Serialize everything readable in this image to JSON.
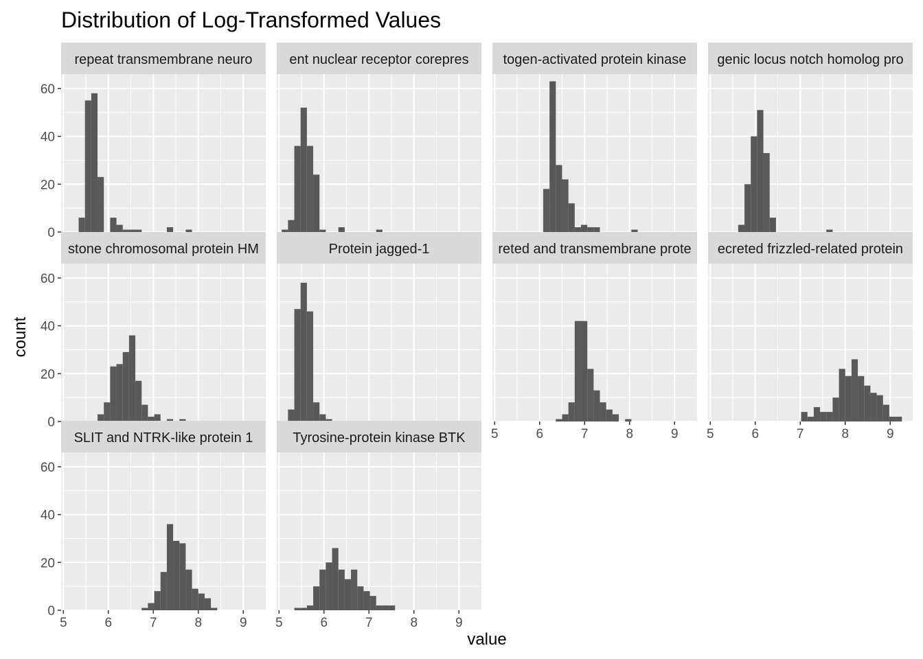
{
  "chart_data": {
    "type": "bar",
    "subtype": "faceted histogram",
    "title": "Distribution of Log-Transformed Values",
    "xlabel": "value",
    "ylabel": "count",
    "xlim": [
      4.95,
      9.5
    ],
    "ylim": [
      0,
      66
    ],
    "xticks": [
      5,
      6,
      7,
      8,
      9
    ],
    "yticks": [
      0,
      20,
      40,
      60
    ],
    "bin_width": 0.14,
    "grid": true,
    "colors": {
      "bar": "#595959",
      "panel": "#ebebeb",
      "strip": "#d9d9d9",
      "grid": "#ffffff"
    },
    "facets": [
      {
        "label": "repeat transmembrane neuro",
        "bins": [
          [
            5.41,
            6
          ],
          [
            5.55,
            55
          ],
          [
            5.69,
            58
          ],
          [
            5.83,
            23
          ],
          [
            6.11,
            6
          ],
          [
            6.25,
            3
          ],
          [
            6.39,
            1
          ],
          [
            6.53,
            1
          ],
          [
            6.67,
            1
          ],
          [
            7.37,
            2
          ],
          [
            7.79,
            1
          ]
        ]
      },
      {
        "label": "ent nuclear receptor corepres",
        "bins": [
          [
            5.13,
            1
          ],
          [
            5.27,
            5
          ],
          [
            5.41,
            36
          ],
          [
            5.55,
            52
          ],
          [
            5.69,
            36
          ],
          [
            5.83,
            24
          ],
          [
            5.97,
            1
          ],
          [
            6.39,
            2
          ],
          [
            7.23,
            1
          ]
        ]
      },
      {
        "label": "togen-activated protein kinase",
        "bins": [
          [
            6.15,
            18
          ],
          [
            6.29,
            63
          ],
          [
            6.43,
            28
          ],
          [
            6.57,
            22
          ],
          [
            6.71,
            12
          ],
          [
            6.85,
            2
          ],
          [
            6.99,
            3
          ],
          [
            7.13,
            2
          ],
          [
            7.27,
            2
          ],
          [
            8.11,
            1
          ]
        ]
      },
      {
        "label": "genic locus notch homolog pro",
        "bins": [
          [
            5.69,
            3
          ],
          [
            5.83,
            20
          ],
          [
            5.97,
            40
          ],
          [
            6.11,
            51
          ],
          [
            6.25,
            33
          ],
          [
            6.39,
            6
          ],
          [
            7.65,
            1
          ]
        ]
      },
      {
        "label": "stone chromosomal protein HM",
        "bins": [
          [
            5.83,
            3
          ],
          [
            5.97,
            8
          ],
          [
            6.11,
            23
          ],
          [
            6.25,
            24
          ],
          [
            6.39,
            29
          ],
          [
            6.53,
            36
          ],
          [
            6.67,
            17
          ],
          [
            6.81,
            7
          ],
          [
            6.95,
            2
          ],
          [
            7.09,
            3
          ],
          [
            7.37,
            1
          ],
          [
            7.65,
            1
          ]
        ]
      },
      {
        "label": "Protein jagged-1",
        "bins": [
          [
            5.27,
            5
          ],
          [
            5.41,
            47
          ],
          [
            5.55,
            58
          ],
          [
            5.69,
            46
          ],
          [
            5.83,
            8
          ],
          [
            5.97,
            3
          ],
          [
            6.11,
            1
          ]
        ]
      },
      {
        "label": "reted and transmembrane prote",
        "bins": [
          [
            6.43,
            1
          ],
          [
            6.57,
            3
          ],
          [
            6.71,
            8
          ],
          [
            6.85,
            42
          ],
          [
            6.99,
            42
          ],
          [
            7.13,
            22
          ],
          [
            7.27,
            13
          ],
          [
            7.41,
            8
          ],
          [
            7.55,
            5
          ],
          [
            7.69,
            3
          ],
          [
            7.97,
            1
          ]
        ]
      },
      {
        "label": "ecreted frizzled-related protein",
        "bins": [
          [
            7.09,
            4
          ],
          [
            7.23,
            2
          ],
          [
            7.37,
            6
          ],
          [
            7.51,
            4
          ],
          [
            7.65,
            4
          ],
          [
            7.79,
            10
          ],
          [
            7.93,
            22
          ],
          [
            8.07,
            19
          ],
          [
            8.21,
            26
          ],
          [
            8.35,
            19
          ],
          [
            8.49,
            15
          ],
          [
            8.63,
            12
          ],
          [
            8.77,
            11
          ],
          [
            8.91,
            7
          ],
          [
            9.05,
            2
          ],
          [
            9.19,
            2
          ]
        ]
      },
      {
        "label": "SLIT and NTRK-like protein 1",
        "bins": [
          [
            6.81,
            1
          ],
          [
            6.95,
            3
          ],
          [
            7.09,
            8
          ],
          [
            7.23,
            16
          ],
          [
            7.37,
            36
          ],
          [
            7.51,
            29
          ],
          [
            7.65,
            28
          ],
          [
            7.79,
            17
          ],
          [
            7.93,
            9
          ],
          [
            8.07,
            7
          ],
          [
            8.21,
            5
          ],
          [
            8.35,
            1
          ]
        ]
      },
      {
        "label": "Tyrosine-protein kinase BTK",
        "bins": [
          [
            5.41,
            1
          ],
          [
            5.55,
            1
          ],
          [
            5.69,
            2
          ],
          [
            5.83,
            10
          ],
          [
            5.97,
            17
          ],
          [
            6.11,
            20
          ],
          [
            6.25,
            26
          ],
          [
            6.39,
            17
          ],
          [
            6.53,
            13
          ],
          [
            6.67,
            17
          ],
          [
            6.81,
            10
          ],
          [
            6.95,
            8
          ],
          [
            7.09,
            6
          ],
          [
            7.23,
            2
          ],
          [
            7.37,
            2
          ],
          [
            7.51,
            2
          ]
        ]
      }
    ]
  }
}
